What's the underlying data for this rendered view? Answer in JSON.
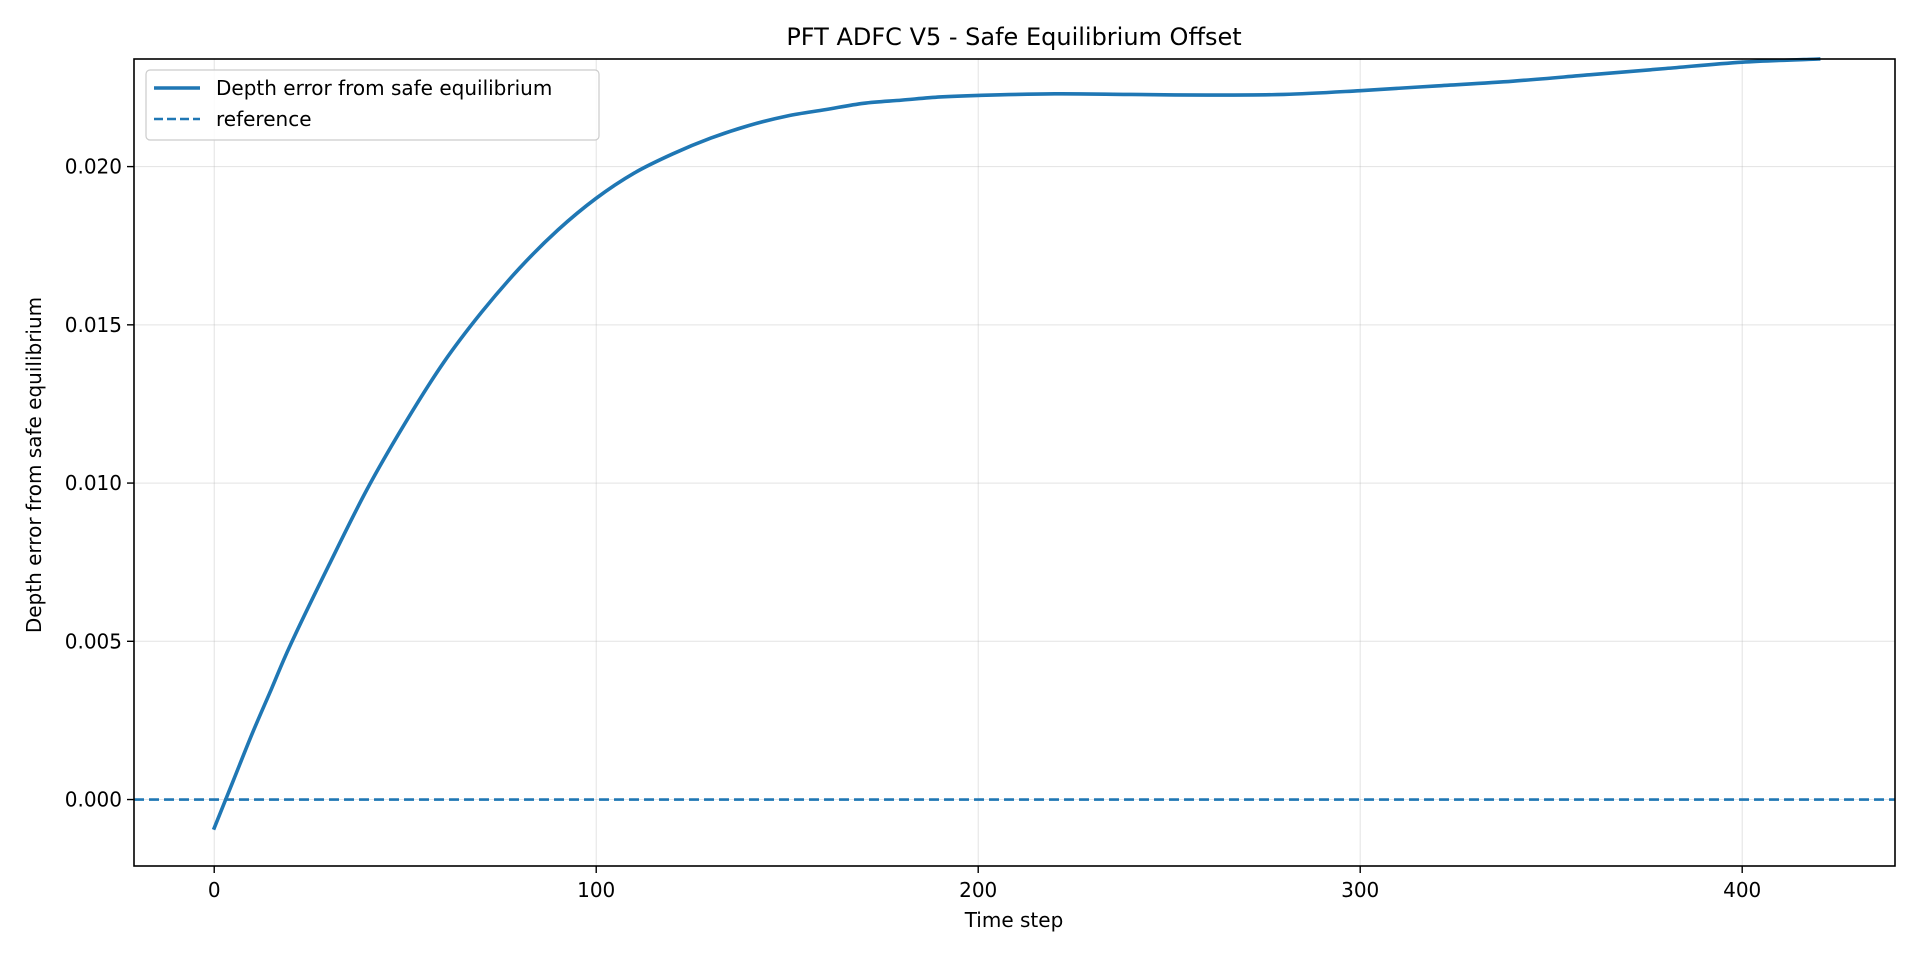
{
  "chart_data": {
    "type": "line",
    "title": "PFT ADFC V5 - Safe Equilibrium Offset",
    "xlabel": "Time step",
    "ylabel": "Depth error from safe equilibrium",
    "xlim": [
      -21,
      440
    ],
    "ylim": [
      -0.0021,
      0.0234
    ],
    "xticks": [
      0,
      100,
      200,
      300,
      400
    ],
    "xtick_labels": [
      "0",
      "100",
      "200",
      "300",
      "400"
    ],
    "yticks": [
      0.0,
      0.005,
      0.01,
      0.015,
      0.02
    ],
    "ytick_labels": [
      "0.000",
      "0.005",
      "0.010",
      "0.015",
      "0.020"
    ],
    "grid": true,
    "legend": {
      "position": "top-left",
      "entries": [
        "Depth error from safe equilibrium",
        "reference"
      ]
    },
    "series": [
      {
        "name": "Depth error from safe equilibrium",
        "style": "solid",
        "color": "#1f77b4",
        "x": [
          0,
          5,
          10,
          15,
          20,
          30,
          40,
          50,
          60,
          70,
          80,
          90,
          100,
          110,
          120,
          130,
          140,
          150,
          160,
          170,
          180,
          190,
          200,
          220,
          240,
          260,
          280,
          300,
          320,
          340,
          360,
          380,
          400,
          420
        ],
        "y": [
          -0.0009,
          0.0006,
          0.0021,
          0.0035,
          0.0049,
          0.0074,
          0.0098,
          0.0119,
          0.0138,
          0.0154,
          0.0168,
          0.018,
          0.019,
          0.0198,
          0.0204,
          0.0209,
          0.0213,
          0.0216,
          0.0218,
          0.022,
          0.0221,
          0.0222,
          0.02225,
          0.0223,
          0.02228,
          0.02226,
          0.02228,
          0.0224,
          0.02255,
          0.0227,
          0.0229,
          0.0231,
          0.0233,
          0.0234
        ]
      },
      {
        "name": "reference",
        "style": "dashed",
        "color": "#1f77b4",
        "y_constant": 0.0
      }
    ]
  }
}
